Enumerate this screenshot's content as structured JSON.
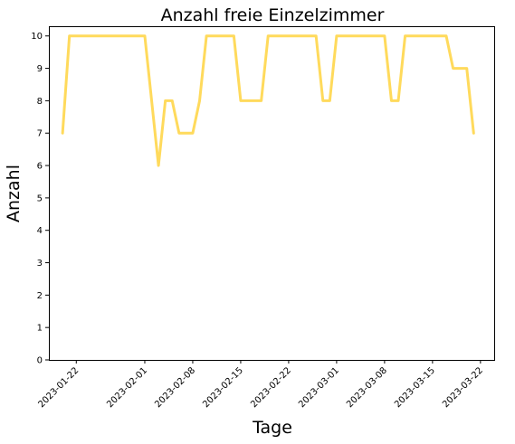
{
  "chart_data": {
    "type": "line",
    "title": "Anzahl freie Einzelzimmer",
    "xlabel": "Tage",
    "ylabel": "Anzahl",
    "x_start": "2023-01-20",
    "x_range": [
      "2023-01-18",
      "2023-03-24"
    ],
    "ylim": [
      0,
      10.3
    ],
    "y_ticks": [
      0,
      1,
      2,
      3,
      4,
      5,
      6,
      7,
      8,
      9,
      10
    ],
    "x_ticks": [
      "2023-01-22",
      "2023-02-01",
      "2023-02-08",
      "2023-02-15",
      "2023-02-22",
      "2023-03-01",
      "2023-03-08",
      "2023-03-15",
      "2023-03-22"
    ],
    "grid": false,
    "series": [
      {
        "name": "",
        "color": "#FFDA5C",
        "x": [
          "2023-01-20",
          "2023-01-21",
          "2023-01-22",
          "2023-01-23",
          "2023-01-24",
          "2023-01-25",
          "2023-01-26",
          "2023-01-27",
          "2023-01-28",
          "2023-01-29",
          "2023-01-30",
          "2023-01-31",
          "2023-02-01",
          "2023-02-02",
          "2023-02-03",
          "2023-02-04",
          "2023-02-05",
          "2023-02-06",
          "2023-02-07",
          "2023-02-08",
          "2023-02-09",
          "2023-02-10",
          "2023-02-11",
          "2023-02-12",
          "2023-02-13",
          "2023-02-14",
          "2023-02-15",
          "2023-02-16",
          "2023-02-17",
          "2023-02-18",
          "2023-02-19",
          "2023-02-20",
          "2023-02-21",
          "2023-02-22",
          "2023-02-23",
          "2023-02-24",
          "2023-02-25",
          "2023-02-26",
          "2023-02-27",
          "2023-02-28",
          "2023-03-01",
          "2023-03-02",
          "2023-03-03",
          "2023-03-04",
          "2023-03-05",
          "2023-03-06",
          "2023-03-07",
          "2023-03-08",
          "2023-03-09",
          "2023-03-10",
          "2023-03-11",
          "2023-03-12",
          "2023-03-13",
          "2023-03-14",
          "2023-03-15",
          "2023-03-16",
          "2023-03-17",
          "2023-03-18",
          "2023-03-19",
          "2023-03-20",
          "2023-03-21"
        ],
        "values": [
          7,
          10,
          10,
          10,
          10,
          10,
          10,
          10,
          10,
          10,
          10,
          10,
          10,
          8,
          6,
          8,
          8,
          7,
          7,
          7,
          8,
          10,
          10,
          10,
          10,
          10,
          8,
          8,
          8,
          8,
          10,
          10,
          10,
          10,
          10,
          10,
          10,
          10,
          8,
          8,
          10,
          10,
          10,
          10,
          10,
          10,
          10,
          10,
          8,
          8,
          10,
          10,
          10,
          10,
          10,
          10,
          10,
          9,
          9,
          9,
          7
        ]
      }
    ]
  }
}
